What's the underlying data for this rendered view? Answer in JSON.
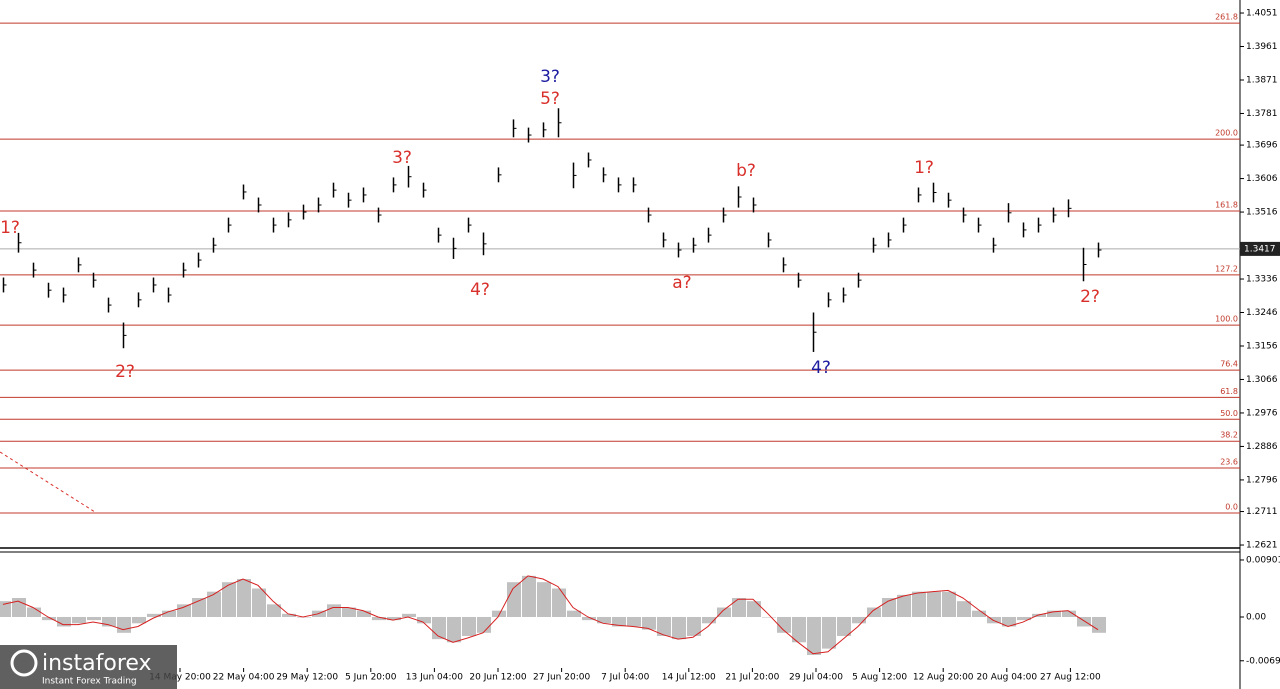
{
  "chart_data": [
    {
      "type": "range",
      "color": "#000000",
      "ylim": [
        1.2613,
        1.4086
      ],
      "yticks": [
        1.4051,
        1.3961,
        1.3871,
        1.3781,
        1.3696,
        1.3606,
        1.3516,
        1.3336,
        1.3246,
        1.3156,
        1.3066,
        1.2976,
        1.2886,
        1.2796,
        1.2711,
        1.2621
      ],
      "current_price": 1.3417,
      "fib_color": "#c0392b",
      "fib_levels": [
        {
          "label": "261.8",
          "price": 1.4024
        },
        {
          "label": "200.0",
          "price": 1.3712
        },
        {
          "label": "161.8",
          "price": 1.3519
        },
        {
          "label": "127.2",
          "price": 1.3347
        },
        {
          "label": "100.0",
          "price": 1.3212
        },
        {
          "label": "76.4",
          "price": 1.3091
        },
        {
          "label": "61.8",
          "price": 1.3018
        },
        {
          "label": "50.0",
          "price": 1.2959
        },
        {
          "label": "38.2",
          "price": 1.29
        },
        {
          "label": "23.6",
          "price": 1.2828
        },
        {
          "label": "0.0",
          "price": 1.2707
        }
      ],
      "xlabels": [
        "14 May 20:00",
        "22 May 04:00",
        "29 May 12:00",
        "5 Jun 20:00",
        "13 Jun 04:00",
        "20 Jun 12:00",
        "27 Jun 20:00",
        "7 Jul 04:00",
        "14 Jul 12:00",
        "21 Jul 20:00",
        "29 Jul 04:00",
        "5 Aug 12:00",
        "12 Aug 20:00",
        "20 Aug 04:00",
        "27 Aug 12:00"
      ],
      "annotations": [
        {
          "text": "1?",
          "color": "#d9302b"
        },
        {
          "text": "2?",
          "color": "#d9302b"
        },
        {
          "text": "3?",
          "color": "#d9302b"
        },
        {
          "text": "4?",
          "color": "#d9302b"
        },
        {
          "text": "3?",
          "color": "#1c1ca0"
        },
        {
          "text": "5?",
          "color": "#d9302b"
        },
        {
          "text": "a?",
          "color": "#d9302b"
        },
        {
          "text": "b?",
          "color": "#d9302b"
        },
        {
          "text": "4?",
          "color": "#1c1ca0"
        },
        {
          "text": "1?",
          "color": "#d9302b"
        },
        {
          "text": "2?",
          "color": "#d9302b"
        }
      ],
      "series": [
        {
          "high": [
            1.334,
            1.346,
            1.338,
            1.3326,
            1.3313,
            1.3394,
            1.3353,
            1.3286,
            1.3219,
            1.33,
            1.334,
            1.3313,
            1.338,
            1.3407,
            1.3447,
            1.3501,
            1.359,
            1.3555,
            1.3501,
            1.3515,
            1.3536,
            1.3555,
            1.3595,
            1.3568,
            1.3582,
            1.3528,
            1.3609,
            1.364,
            1.3595,
            1.3474,
            1.3447,
            1.3501,
            1.3461,
            1.3636,
            1.3765,
            1.3743,
            1.3757,
            1.3795,
            1.3649,
            1.3676,
            1.3636,
            1.3609,
            1.3609,
            1.3528,
            1.3461,
            1.3434,
            1.3447,
            1.3474,
            1.3528,
            1.3585,
            1.3555,
            1.3461,
            1.3394,
            1.3353,
            1.3246,
            1.33,
            1.3313,
            1.3353,
            1.3447,
            1.3461,
            1.3501,
            1.3582,
            1.3595,
            1.3568,
            1.3528,
            1.3501,
            1.3447,
            1.354,
            1.3488,
            1.3501,
            1.3528,
            1.355,
            1.342,
            1.3434
          ],
          "low": [
            1.33,
            1.3407,
            1.334,
            1.3286,
            1.3273,
            1.3354,
            1.3313,
            1.3246,
            1.315,
            1.326,
            1.33,
            1.3273,
            1.334,
            1.3367,
            1.3407,
            1.3461,
            1.355,
            1.3515,
            1.3461,
            1.3475,
            1.3496,
            1.3515,
            1.3555,
            1.3528,
            1.3542,
            1.3488,
            1.3569,
            1.3582,
            1.3555,
            1.3434,
            1.339,
            1.3461,
            1.34,
            1.3596,
            1.3717,
            1.3703,
            1.3717,
            1.3717,
            1.358,
            1.3636,
            1.3596,
            1.3569,
            1.3569,
            1.3488,
            1.3421,
            1.3394,
            1.3407,
            1.3434,
            1.3488,
            1.3528,
            1.3515,
            1.3421,
            1.3354,
            1.3313,
            1.314,
            1.326,
            1.3273,
            1.3313,
            1.3407,
            1.3421,
            1.3461,
            1.3542,
            1.3542,
            1.3528,
            1.3488,
            1.3461,
            1.3407,
            1.3488,
            1.3448,
            1.3461,
            1.3488,
            1.3502,
            1.333,
            1.3394
          ]
        }
      ],
      "branding": {
        "name": "instaforex",
        "tagline": "Instant Forex Trading"
      }
    },
    {
      "type": "macd",
      "ylim": [
        -0.01138,
        0.01027
      ],
      "yticks": [
        0.00901,
        {
          "value": 0,
          "label": "0.00"
        },
        -0.00692
      ],
      "series": [
        {
          "color": "#c0c0c0",
          "values": [
            0.0025,
            0.003,
            0.0015,
            -0.0005,
            -0.0015,
            -0.001,
            -0.0005,
            -0.0015,
            -0.0025,
            -0.001,
            0.0005,
            0.001,
            0.002,
            0.003,
            0.004,
            0.0055,
            0.006,
            0.0045,
            0.002,
            0.0005,
            0.0,
            0.001,
            0.002,
            0.0015,
            0.001,
            -0.0005,
            -0.0005,
            0.0005,
            -0.001,
            -0.0035,
            -0.004,
            -0.003,
            -0.0025,
            0.001,
            0.0055,
            0.0065,
            0.0055,
            0.0045,
            0.001,
            -0.0005,
            -0.001,
            -0.0015,
            -0.0015,
            -0.002,
            -0.003,
            -0.0035,
            -0.003,
            -0.001,
            0.0015,
            0.003,
            0.0025,
            0.0,
            -0.0025,
            -0.004,
            -0.006,
            -0.005,
            -0.003,
            -0.001,
            0.0015,
            0.003,
            0.0035,
            0.004,
            0.004,
            0.004,
            0.0025,
            0.001,
            -0.001,
            -0.0015,
            -0.0005,
            0.0005,
            0.001,
            0.001,
            -0.0015,
            -0.0025
          ]
        },
        {
          "color": "#d62020",
          "values": [
            0.002,
            0.0025,
            0.0015,
            0.0,
            -0.0012,
            -0.0012,
            -0.0008,
            -0.0012,
            -0.002,
            -0.0015,
            -0.0002,
            0.0008,
            0.0015,
            0.0025,
            0.0035,
            0.005,
            0.006,
            0.005,
            0.0025,
            0.0005,
            0.0,
            0.0005,
            0.0015,
            0.0015,
            0.001,
            0.0,
            -0.0005,
            0.0,
            -0.0008,
            -0.003,
            -0.004,
            -0.0033,
            -0.0025,
            0.0,
            0.0045,
            0.0065,
            0.006,
            0.0048,
            0.0015,
            0.0,
            -0.001,
            -0.0013,
            -0.0015,
            -0.0018,
            -0.0028,
            -0.0035,
            -0.0032,
            -0.0015,
            0.001,
            0.0028,
            0.0028,
            0.0005,
            -0.002,
            -0.004,
            -0.0058,
            -0.0055,
            -0.0035,
            -0.0015,
            0.001,
            0.0025,
            0.0033,
            0.0038,
            0.004,
            0.0042,
            0.003,
            0.0012,
            -0.0005,
            -0.0015,
            -0.0008,
            0.0003,
            0.0008,
            0.001,
            -0.0005,
            -0.002
          ]
        }
      ]
    }
  ]
}
